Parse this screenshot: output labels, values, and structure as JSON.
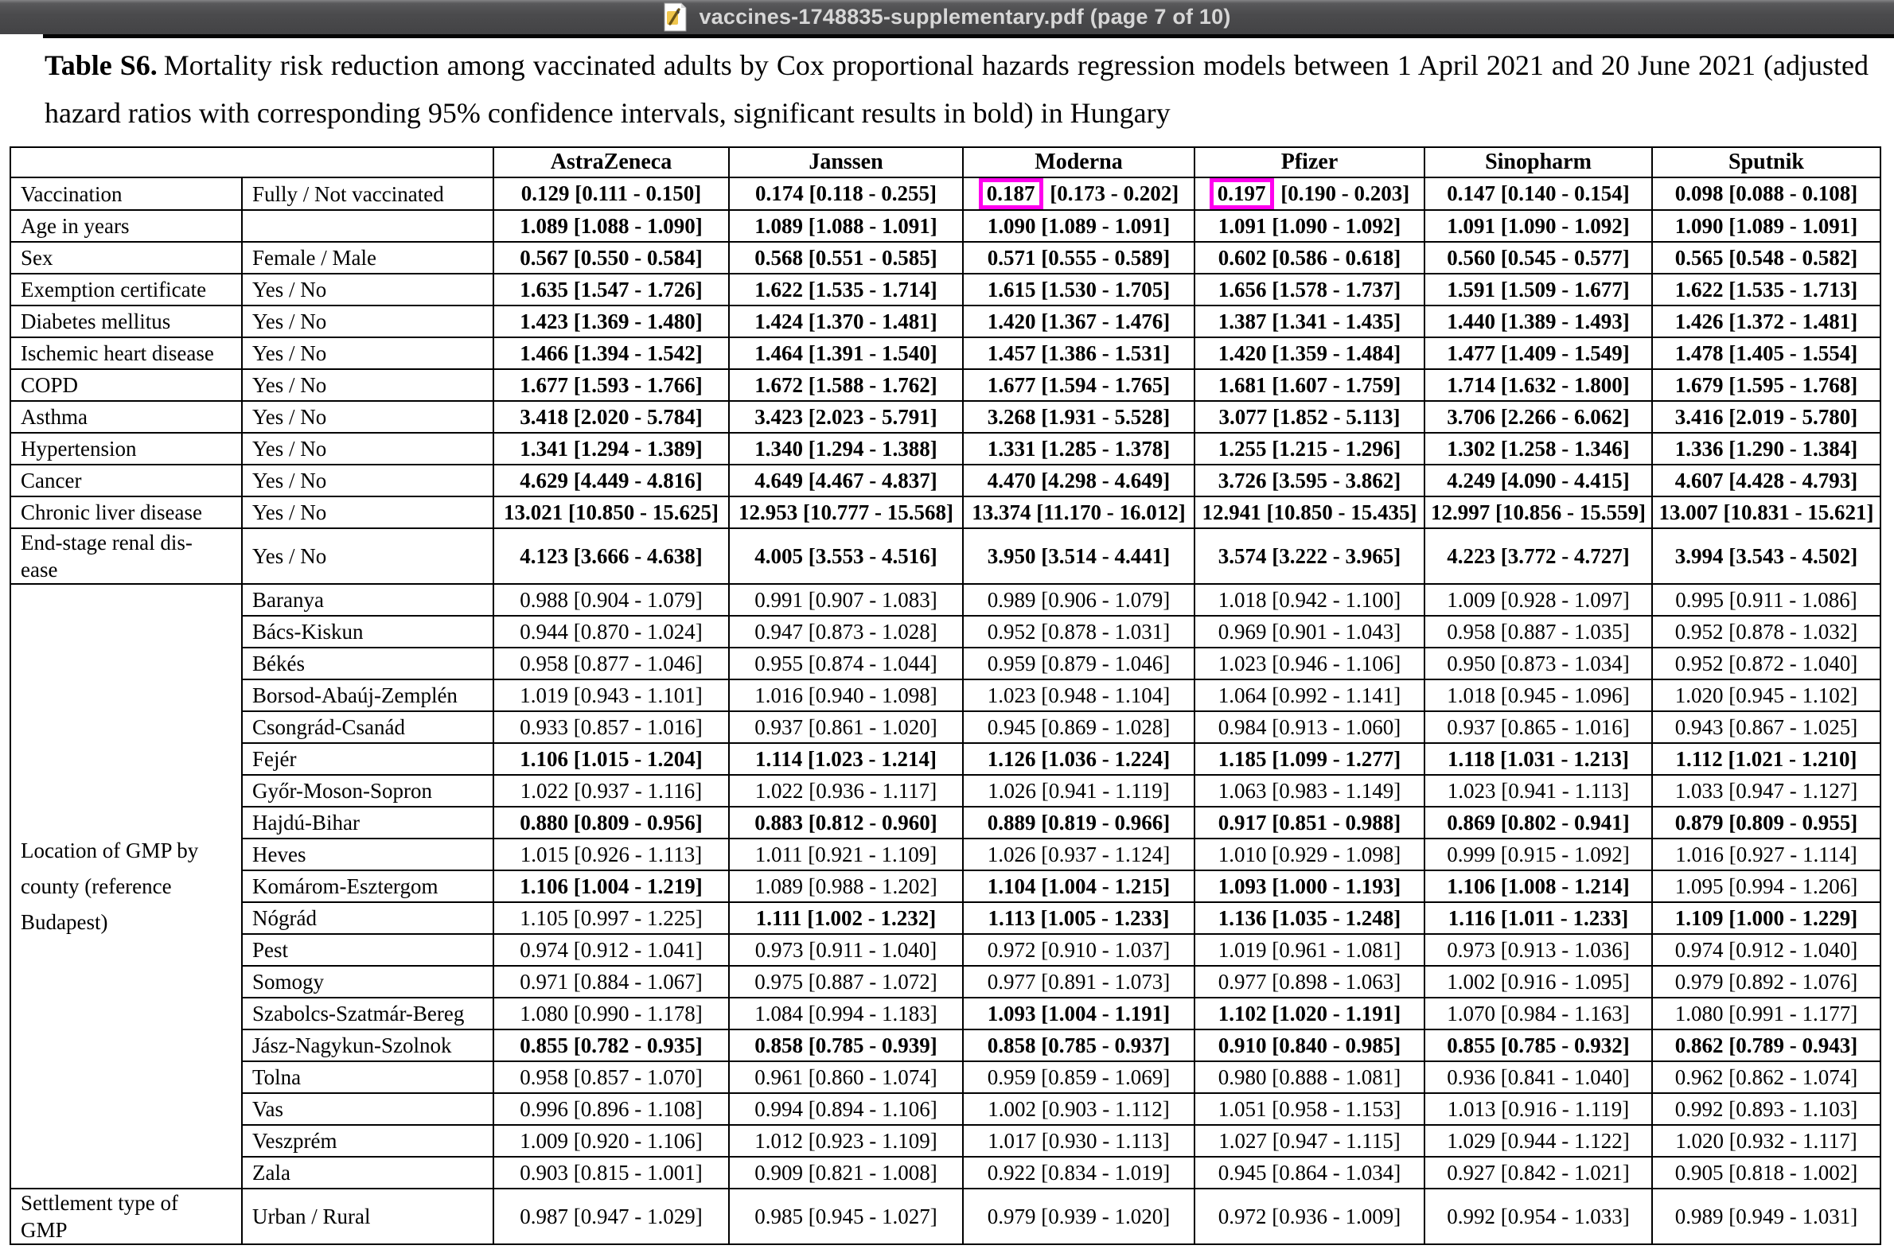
{
  "window": {
    "title": "vaccines-1748835-supplementary.pdf (page 7 of 10)",
    "icon": "pdf-file-icon"
  },
  "caption": {
    "label": "Table S6.",
    "text": "Mortality risk reduction among vaccinated adults by Cox proportional hazards regression models between 1 April 2021 and 20 June 2021 (adjusted hazard ratios with corresponding 95% confidence intervals, significant results in bold) in Hungary"
  },
  "colors": {
    "highlight_box": "#ff00ee",
    "titlebar_background": "#4b4b4d",
    "titlebar_text": "#d6d6d6"
  },
  "table": {
    "columns": [
      "AstraZeneca",
      "Janssen",
      "Moderna",
      "Pfizer",
      "Sinopharm",
      "Sputnik"
    ],
    "group_label": "Location of GMP by\ncounty (reference\nBudapest)",
    "group_rowspan": 19,
    "rows": [
      {
        "label": "Vaccination",
        "sub": "Fully / Not vaccinated",
        "cells": [
          "0.129 [0.111 - 0.150]",
          "0.174 [0.118 - 0.255]",
          "0.187 [0.173 - 0.202]",
          "0.197 [0.190 - 0.203]",
          "0.147 [0.140 - 0.154]",
          "0.098 [0.088 - 0.108]"
        ],
        "bold": [
          1,
          1,
          1,
          1,
          1,
          1
        ],
        "boxed": [
          0,
          0,
          1,
          1,
          0,
          0
        ]
      },
      {
        "label": "Age in years",
        "sub": "",
        "cells": [
          "1.089 [1.088 - 1.090]",
          "1.089 [1.088 - 1.091]",
          "1.090 [1.089 - 1.091]",
          "1.091 [1.090 - 1.092]",
          "1.091 [1.090 - 1.092]",
          "1.090 [1.089 - 1.091]"
        ],
        "bold": [
          1,
          1,
          1,
          1,
          1,
          1
        ]
      },
      {
        "label": "Sex",
        "sub": "Female / Male",
        "cells": [
          "0.567 [0.550 - 0.584]",
          "0.568 [0.551 - 0.585]",
          "0.571 [0.555 - 0.589]",
          "0.602 [0.586 - 0.618]",
          "0.560 [0.545 - 0.577]",
          "0.565 [0.548 - 0.582]"
        ],
        "bold": [
          1,
          1,
          1,
          1,
          1,
          1
        ]
      },
      {
        "label": "Exemption certificate",
        "sub": "Yes / No",
        "cells": [
          "1.635 [1.547 - 1.726]",
          "1.622 [1.535 - 1.714]",
          "1.615 [1.530 - 1.705]",
          "1.656 [1.578 - 1.737]",
          "1.591 [1.509 - 1.677]",
          "1.622 [1.535 - 1.713]"
        ],
        "bold": [
          1,
          1,
          1,
          1,
          1,
          1
        ]
      },
      {
        "label": "Diabetes mellitus",
        "sub": "Yes / No",
        "cells": [
          "1.423 [1.369 - 1.480]",
          "1.424 [1.370 - 1.481]",
          "1.420 [1.367 - 1.476]",
          "1.387 [1.341 - 1.435]",
          "1.440 [1.389 - 1.493]",
          "1.426 [1.372 - 1.481]"
        ],
        "bold": [
          1,
          1,
          1,
          1,
          1,
          1
        ]
      },
      {
        "label": "Ischemic heart disease",
        "sub": "Yes / No",
        "cells": [
          "1.466 [1.394 - 1.542]",
          "1.464 [1.391 - 1.540]",
          "1.457 [1.386 - 1.531]",
          "1.420 [1.359 - 1.484]",
          "1.477 [1.409 - 1.549]",
          "1.478 [1.405 - 1.554]"
        ],
        "bold": [
          1,
          1,
          1,
          1,
          1,
          1
        ]
      },
      {
        "label": "COPD",
        "sub": "Yes / No",
        "cells": [
          "1.677 [1.593 - 1.766]",
          "1.672 [1.588 - 1.762]",
          "1.677 [1.594 - 1.765]",
          "1.681 [1.607 - 1.759]",
          "1.714 [1.632 - 1.800]",
          "1.679 [1.595 - 1.768]"
        ],
        "bold": [
          1,
          1,
          1,
          1,
          1,
          1
        ]
      },
      {
        "label": "Asthma",
        "sub": "Yes / No",
        "cells": [
          "3.418 [2.020 - 5.784]",
          "3.423 [2.023 - 5.791]",
          "3.268 [1.931 - 5.528]",
          "3.077 [1.852 - 5.113]",
          "3.706 [2.266 - 6.062]",
          "3.416 [2.019 - 5.780]"
        ],
        "bold": [
          1,
          1,
          1,
          1,
          1,
          1
        ]
      },
      {
        "label": "Hypertension",
        "sub": "Yes / No",
        "cells": [
          "1.341 [1.294 - 1.389]",
          "1.340 [1.294 - 1.388]",
          "1.331 [1.285 - 1.378]",
          "1.255 [1.215 - 1.296]",
          "1.302 [1.258 - 1.346]",
          "1.336 [1.290 - 1.384]"
        ],
        "bold": [
          1,
          1,
          1,
          1,
          1,
          1
        ]
      },
      {
        "label": "Cancer",
        "sub": "Yes / No",
        "cells": [
          "4.629 [4.449 - 4.816]",
          "4.649 [4.467 - 4.837]",
          "4.470 [4.298 - 4.649]",
          "3.726 [3.595 - 3.862]",
          "4.249 [4.090 - 4.415]",
          "4.607 [4.428 - 4.793]"
        ],
        "bold": [
          1,
          1,
          1,
          1,
          1,
          1
        ]
      },
      {
        "label": "Chronic liver disease",
        "sub": "Yes / No",
        "cells": [
          "13.021 [10.850 - 15.625]",
          "12.953 [10.777 - 15.568]",
          "13.374 [11.170 - 16.012]",
          "12.941 [10.850 - 15.435]",
          "12.997 [10.856 - 15.559]",
          "13.007 [10.831 - 15.621]"
        ],
        "bold": [
          1,
          1,
          1,
          1,
          1,
          1
        ]
      },
      {
        "label": "End-stage renal dis-\nease",
        "sub": "Yes / No",
        "cells": [
          "4.123 [3.666 - 4.638]",
          "4.005 [3.553 - 4.516]",
          "3.950 [3.514 - 4.441]",
          "3.574 [3.222 - 3.965]",
          "4.223 [3.772 - 4.727]",
          "3.994 [3.543 - 4.502]"
        ],
        "bold": [
          1,
          1,
          1,
          1,
          1,
          1
        ]
      },
      {
        "group": 1,
        "county": 1,
        "sub": "Baranya",
        "cells": [
          "0.988 [0.904 - 1.079]",
          "0.991 [0.907 - 1.083]",
          "0.989 [0.906 - 1.079]",
          "1.018 [0.942 - 1.100]",
          "1.009 [0.928 - 1.097]",
          "0.995 [0.911 - 1.086]"
        ]
      },
      {
        "county": 1,
        "sub": "Bács-Kiskun",
        "cells": [
          "0.944 [0.870 - 1.024]",
          "0.947 [0.873 - 1.028]",
          "0.952 [0.878 - 1.031]",
          "0.969 [0.901 - 1.043]",
          "0.958 [0.887 - 1.035]",
          "0.952 [0.878 - 1.032]"
        ]
      },
      {
        "county": 1,
        "sub": "Békés",
        "cells": [
          "0.958 [0.877 - 1.046]",
          "0.955 [0.874 - 1.044]",
          "0.959 [0.879 - 1.046]",
          "1.023 [0.946 - 1.106]",
          "0.950 [0.873 - 1.034]",
          "0.952 [0.872 - 1.040]"
        ]
      },
      {
        "county": 1,
        "sub": "Borsod-Abaúj-Zemplén",
        "cells": [
          "1.019 [0.943 - 1.101]",
          "1.016 [0.940 - 1.098]",
          "1.023 [0.948 - 1.104]",
          "1.064 [0.992 - 1.141]",
          "1.018 [0.945 - 1.096]",
          "1.020 [0.945 - 1.102]"
        ]
      },
      {
        "county": 1,
        "sub": "Csongrád-Csanád",
        "cells": [
          "0.933 [0.857 - 1.016]",
          "0.937 [0.861 - 1.020]",
          "0.945 [0.869 - 1.028]",
          "0.984 [0.913 - 1.060]",
          "0.937 [0.865 - 1.016]",
          "0.943 [0.867 - 1.025]"
        ]
      },
      {
        "county": 1,
        "sub": "Fejér",
        "cells": [
          "1.106 [1.015 - 1.204]",
          "1.114 [1.023 - 1.214]",
          "1.126 [1.036 - 1.224]",
          "1.185 [1.099 - 1.277]",
          "1.118 [1.031 - 1.213]",
          "1.112 [1.021 - 1.210]"
        ],
        "bold": [
          1,
          1,
          1,
          1,
          1,
          1
        ]
      },
      {
        "county": 1,
        "sub": "Győr-Moson-Sopron",
        "cells": [
          "1.022 [0.937 - 1.116]",
          "1.022 [0.936 - 1.117]",
          "1.026 [0.941 - 1.119]",
          "1.063 [0.983 - 1.149]",
          "1.023 [0.941 - 1.113]",
          "1.033 [0.947 - 1.127]"
        ]
      },
      {
        "county": 1,
        "sub": "Hajdú-Bihar",
        "cells": [
          "0.880 [0.809 - 0.956]",
          "0.883 [0.812 - 0.960]",
          "0.889 [0.819 - 0.966]",
          "0.917 [0.851 - 0.988]",
          "0.869 [0.802 - 0.941]",
          "0.879 [0.809 - 0.955]"
        ],
        "bold": [
          1,
          1,
          1,
          1,
          1,
          1
        ]
      },
      {
        "county": 1,
        "sub": "Heves",
        "cells": [
          "1.015 [0.926 - 1.113]",
          "1.011 [0.921 - 1.109]",
          "1.026 [0.937 - 1.124]",
          "1.010 [0.929 - 1.098]",
          "0.999 [0.915 - 1.092]",
          "1.016 [0.927 - 1.114]"
        ]
      },
      {
        "county": 1,
        "sub": "Komárom-Esztergom",
        "cells": [
          "1.106 [1.004 - 1.219]",
          "1.089 [0.988 - 1.202]",
          "1.104 [1.004 - 1.215]",
          "1.093 [1.000 - 1.193]",
          "1.106 [1.008 - 1.214]",
          "1.095 [0.994 - 1.206]"
        ],
        "bold": [
          1,
          0,
          1,
          1,
          1,
          0
        ]
      },
      {
        "county": 1,
        "sub": "Nógrád",
        "cells": [
          "1.105 [0.997 - 1.225]",
          "1.111 [1.002 - 1.232]",
          "1.113 [1.005 - 1.233]",
          "1.136 [1.035 - 1.248]",
          "1.116 [1.011 - 1.233]",
          "1.109 [1.000 - 1.229]"
        ],
        "bold": [
          0,
          1,
          1,
          1,
          1,
          1
        ]
      },
      {
        "county": 1,
        "sub": "Pest",
        "cells": [
          "0.974 [0.912 - 1.041]",
          "0.973 [0.911 - 1.040]",
          "0.972 [0.910 - 1.037]",
          "1.019 [0.961 - 1.081]",
          "0.973 [0.913 - 1.036]",
          "0.974 [0.912 - 1.040]"
        ]
      },
      {
        "county": 1,
        "sub": "Somogy",
        "cells": [
          "0.971 [0.884 - 1.067]",
          "0.975 [0.887 - 1.072]",
          "0.977 [0.891 - 1.073]",
          "0.977 [0.898 - 1.063]",
          "1.002 [0.916 - 1.095]",
          "0.979 [0.892 - 1.076]"
        ]
      },
      {
        "county": 1,
        "sub": "Szabolcs-Szatmár-Bereg",
        "cells": [
          "1.080 [0.990 - 1.178]",
          "1.084 [0.994 - 1.183]",
          "1.093 [1.004 - 1.191]",
          "1.102 [1.020 - 1.191]",
          "1.070 [0.984 - 1.163]",
          "1.080 [0.991 - 1.177]"
        ],
        "bold": [
          0,
          0,
          1,
          1,
          0,
          0
        ]
      },
      {
        "county": 1,
        "sub": "Jász-Nagykun-Szolnok",
        "cells": [
          "0.855 [0.782 - 0.935]",
          "0.858 [0.785 - 0.939]",
          "0.858 [0.785 - 0.937]",
          "0.910 [0.840 - 0.985]",
          "0.855 [0.785 - 0.932]",
          "0.862 [0.789 - 0.943]"
        ],
        "bold": [
          1,
          1,
          1,
          1,
          1,
          1
        ]
      },
      {
        "county": 1,
        "sub": "Tolna",
        "cells": [
          "0.958 [0.857 - 1.070]",
          "0.961 [0.860 - 1.074]",
          "0.959 [0.859 - 1.069]",
          "0.980 [0.888 - 1.081]",
          "0.936 [0.841 - 1.040]",
          "0.962 [0.862 - 1.074]"
        ]
      },
      {
        "county": 1,
        "sub": "Vas",
        "cells": [
          "0.996 [0.896 - 1.108]",
          "0.994 [0.894 - 1.106]",
          "1.002 [0.903 - 1.112]",
          "1.051 [0.958 - 1.153]",
          "1.013 [0.916 - 1.119]",
          "0.992 [0.893 - 1.103]"
        ]
      },
      {
        "county": 1,
        "sub": "Veszprém",
        "cells": [
          "1.009 [0.920 - 1.106]",
          "1.012 [0.923 - 1.109]",
          "1.017 [0.930 - 1.113]",
          "1.027 [0.947 - 1.115]",
          "1.029 [0.944 - 1.122]",
          "1.020 [0.932 - 1.117]"
        ]
      },
      {
        "county": 1,
        "sub": "Zala",
        "cells": [
          "0.903 [0.815 - 1.001]",
          "0.909 [0.821 - 1.008]",
          "0.922 [0.834 - 1.019]",
          "0.945 [0.864 - 1.034]",
          "0.927 [0.842 - 1.021]",
          "0.905 [0.818 - 1.002]"
        ]
      },
      {
        "label": "Settlement type of\nGMP",
        "sub": "Urban / Rural",
        "cells": [
          "0.987 [0.947 - 1.029]",
          "0.985 [0.945 - 1.027]",
          "0.979 [0.939 - 1.020]",
          "0.972 [0.936 - 1.009]",
          "0.992 [0.954 - 1.033]",
          "0.989 [0.949 - 1.031]"
        ]
      }
    ]
  }
}
